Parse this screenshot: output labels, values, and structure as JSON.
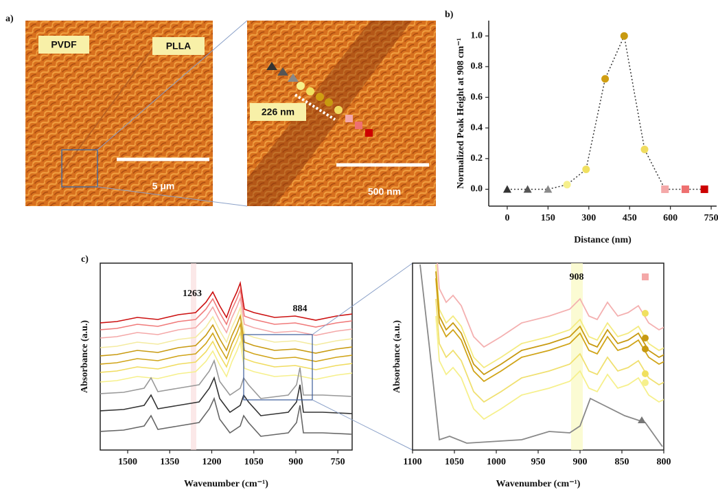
{
  "panel_labels": [
    "a)",
    "b)",
    "c)"
  ],
  "afm": {
    "left_labels": [
      "PVDF",
      "PLLA"
    ],
    "left_scale": "5 μm",
    "right_scale": "500 nm",
    "right_distance": "226 nm"
  },
  "chart_data": [
    {
      "type": "scatter",
      "xlabel": "Distance (nm)",
      "ylabel": "Normalized Peak Height at 908 cm⁻¹",
      "x": [
        0,
        75,
        150,
        220,
        290,
        360,
        430,
        505,
        580,
        655,
        725
      ],
      "series": [
        {
          "values": [
            0,
            0,
            0,
            0.03,
            0.13,
            0.72,
            1.0,
            0.26,
            0,
            0,
            0
          ],
          "markers": [
            "triangle",
            "triangle",
            "triangle",
            "circle",
            "circle",
            "circle",
            "circle",
            "circle",
            "square",
            "square",
            "square"
          ],
          "colors": [
            "#333333",
            "#555555",
            "#8a8a8a",
            "#f6f08c",
            "#f0e060",
            "#d09e12",
            "#c89a10",
            "#f0dc60",
            "#f4a8a8",
            "#ee7070",
            "#cc0000"
          ]
        }
      ],
      "xlim": [
        -68,
        770
      ],
      "ylim": [
        -0.11,
        1.1
      ],
      "xticks": [
        0,
        150,
        300,
        450,
        600,
        750
      ],
      "yticks": [
        {
          "value": 0,
          "label": "0.0"
        },
        {
          "value": 0.2,
          "label": "0.2"
        },
        {
          "value": 0.4,
          "label": "0.4"
        },
        {
          "value": 0.6,
          "label": "0.6"
        },
        {
          "value": 0.8,
          "label": "0.8"
        },
        {
          "value": 1,
          "label": "1.0"
        }
      ]
    },
    {
      "type": "spectra",
      "xlabel": "Wavenumber (cm⁻¹)",
      "ylabel": "Absorbance (a.u.)",
      "xlim": [
        1598,
        699
      ],
      "xticks": [
        1500,
        1350,
        1200,
        1050,
        900,
        750
      ],
      "annotations": [
        "1263",
        "884"
      ]
    },
    {
      "type": "spectra",
      "xlabel": "Wavenumber (cm⁻¹)",
      "ylabel": "Absorbance (a.u.)",
      "xlim": [
        1100,
        800
      ],
      "xticks": [
        1100,
        1050,
        1000,
        950,
        900,
        850,
        800
      ],
      "annotations": [
        "908"
      ]
    }
  ]
}
